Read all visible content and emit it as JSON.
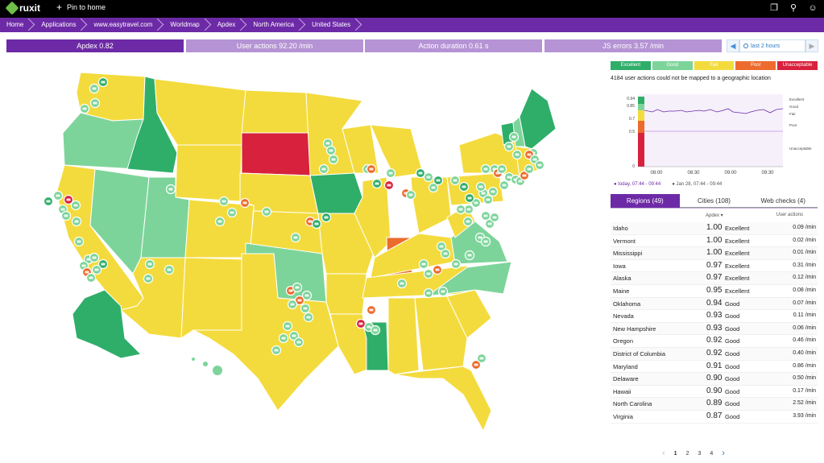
{
  "topbar": {
    "logo_text": "ruxit",
    "pin_label": "Pin to home"
  },
  "breadcrumbs": [
    "Home",
    "Applications",
    "www.easytravel.com",
    "Worldmap",
    "Apdex",
    "North America",
    "United States"
  ],
  "kpis": [
    {
      "label": "Apdex 0.82",
      "active": true
    },
    {
      "label": "User actions 92.20 /min",
      "active": false
    },
    {
      "label": "Action duration 0.61 s",
      "active": false
    },
    {
      "label": "JS errors 3.57 /min",
      "active": false
    }
  ],
  "timeframe": {
    "label": "last 2 hours"
  },
  "legend": [
    {
      "label": "Excellent",
      "color": "#2fae6a"
    },
    {
      "label": "Good",
      "color": "#7dd49a"
    },
    {
      "label": "Fair",
      "color": "#f4db3d"
    },
    {
      "label": "Poor",
      "color": "#ec6b2d"
    },
    {
      "label": "Unacceptable",
      "color": "#d8213c"
    }
  ],
  "unmapped_note": "4184 user actions could not be mapped to a geographic location",
  "spark": {
    "y_ticks": [
      "0.94",
      "0.85",
      "0.7",
      "0.5",
      "0"
    ],
    "x_ticks": [
      "08:00",
      "08:30",
      "09:00",
      "09:30"
    ],
    "band_labels": [
      "Excellent",
      "Good",
      "Fair",
      "Poor",
      "Unacceptable"
    ],
    "series_current": "today, 07:44 - 09:44",
    "series_previous": "Jan 28, 07:44 - 09:44"
  },
  "tabs": [
    "Regions (49)",
    "Cities (108)",
    "Web checks (4)"
  ],
  "table_headers": {
    "apdex": "Apdex ▾",
    "user_actions": "User actions"
  },
  "rows": [
    {
      "name": "Idaho",
      "apdex": "1.00",
      "rating": "Excellent",
      "ua": "0.09 /min"
    },
    {
      "name": "Vermont",
      "apdex": "1.00",
      "rating": "Excellent",
      "ua": "0.02 /min"
    },
    {
      "name": "Mississippi",
      "apdex": "1.00",
      "rating": "Excellent",
      "ua": "0.01 /min"
    },
    {
      "name": "Iowa",
      "apdex": "0.97",
      "rating": "Excellent",
      "ua": "0.31 /min"
    },
    {
      "name": "Alaska",
      "apdex": "0.97",
      "rating": "Excellent",
      "ua": "0.12 /min"
    },
    {
      "name": "Maine",
      "apdex": "0.95",
      "rating": "Excellent",
      "ua": "0.08 /min"
    },
    {
      "name": "Oklahoma",
      "apdex": "0.94",
      "rating": "Good",
      "ua": "0.07 /min"
    },
    {
      "name": "Nevada",
      "apdex": "0.93",
      "rating": "Good",
      "ua": "0.11 /min"
    },
    {
      "name": "New Hampshire",
      "apdex": "0.93",
      "rating": "Good",
      "ua": "0.06 /min"
    },
    {
      "name": "Oregon",
      "apdex": "0.92",
      "rating": "Good",
      "ua": "0.46 /min"
    },
    {
      "name": "District of Columbia",
      "apdex": "0.92",
      "rating": "Good",
      "ua": "0.40 /min"
    },
    {
      "name": "Maryland",
      "apdex": "0.91",
      "rating": "Good",
      "ua": "0.86 /min"
    },
    {
      "name": "Delaware",
      "apdex": "0.90",
      "rating": "Good",
      "ua": "0.50 /min"
    },
    {
      "name": "Hawaii",
      "apdex": "0.90",
      "rating": "Good",
      "ua": "0.17 /min"
    },
    {
      "name": "North Carolina",
      "apdex": "0.89",
      "rating": "Good",
      "ua": "2.52 /min"
    },
    {
      "name": "Virginia",
      "apdex": "0.87",
      "rating": "Good",
      "ua": "3.93 /min"
    }
  ],
  "pager": {
    "pages": [
      "1",
      "2",
      "3",
      "4"
    ],
    "current": "1"
  }
}
